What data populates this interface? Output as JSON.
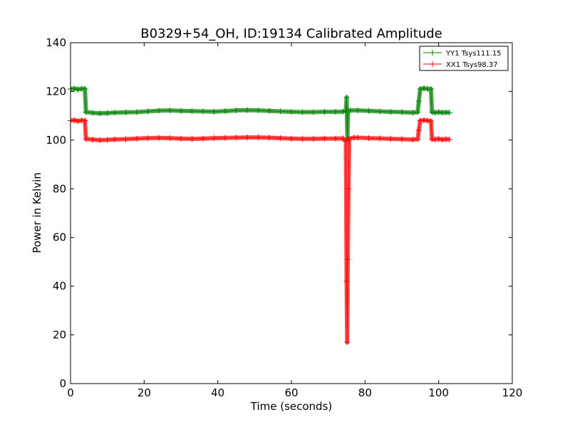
{
  "chart_data": {
    "type": "line",
    "title": "B0329+54_OH, ID:19134 Calibrated Amplitude",
    "xlabel": "Time (seconds)",
    "ylabel": "Power in Kelvin",
    "xlim": [
      0,
      120
    ],
    "ylim": [
      0,
      140
    ],
    "xticks": [
      0,
      20,
      40,
      60,
      80,
      100,
      120
    ],
    "yticks": [
      0,
      20,
      40,
      60,
      80,
      100,
      120,
      140
    ],
    "grid": false,
    "legend_position": "top-right",
    "series": [
      {
        "name": "YY1 Tsys111.15",
        "color": "#008000",
        "marker": "+",
        "points": [
          [
            0,
            121
          ],
          [
            1,
            121.2
          ],
          [
            2,
            120.8
          ],
          [
            3,
            121.1
          ],
          [
            3.9,
            121
          ],
          [
            4.2,
            111.5
          ],
          [
            6,
            111.2
          ],
          [
            8,
            111
          ],
          [
            10,
            111.1
          ],
          [
            12,
            111.3
          ],
          [
            15,
            111.4
          ],
          [
            18,
            111.5
          ],
          [
            21,
            111.8
          ],
          [
            24,
            112.1
          ],
          [
            27,
            112.2
          ],
          [
            30,
            112
          ],
          [
            33,
            111.9
          ],
          [
            36,
            111.8
          ],
          [
            39,
            111.7
          ],
          [
            42,
            111.9
          ],
          [
            45,
            112.2
          ],
          [
            48,
            112.3
          ],
          [
            51,
            112.2
          ],
          [
            54,
            112
          ],
          [
            57,
            111.8
          ],
          [
            60,
            111.6
          ],
          [
            63,
            111.5
          ],
          [
            66,
            111.5
          ],
          [
            69,
            111.6
          ],
          [
            72,
            111.6
          ],
          [
            74,
            111.7
          ],
          [
            74.8,
            112
          ],
          [
            75.0,
            117.5
          ],
          [
            75.2,
            100.5
          ],
          [
            75.4,
            112
          ],
          [
            76,
            112.2
          ],
          [
            78,
            112.2
          ],
          [
            81,
            112
          ],
          [
            84,
            111.8
          ],
          [
            87,
            111.6
          ],
          [
            90,
            111.5
          ],
          [
            93,
            111.3
          ],
          [
            94.3,
            111.5
          ],
          [
            94.6,
            116
          ],
          [
            95,
            121
          ],
          [
            96,
            121.3
          ],
          [
            97,
            121
          ],
          [
            97.9,
            121
          ],
          [
            98.2,
            111.5
          ],
          [
            99,
            111.3
          ],
          [
            100,
            111.5
          ],
          [
            101,
            111.3
          ],
          [
            102,
            111.4
          ],
          [
            103,
            111.3
          ]
        ]
      },
      {
        "name": "XX1 Tsys98.37",
        "color": "#ff0000",
        "marker": "+",
        "points": [
          [
            0,
            108
          ],
          [
            1,
            108.2
          ],
          [
            2,
            107.8
          ],
          [
            3,
            108.1
          ],
          [
            3.9,
            108
          ],
          [
            4.2,
            100.5
          ],
          [
            6,
            100.2
          ],
          [
            8,
            100
          ],
          [
            10,
            100.1
          ],
          [
            12,
            100.3
          ],
          [
            15,
            100.4
          ],
          [
            18,
            100.6
          ],
          [
            21,
            100.8
          ],
          [
            24,
            100.9
          ],
          [
            27,
            100.8
          ],
          [
            30,
            100.6
          ],
          [
            33,
            100.5
          ],
          [
            36,
            100.6
          ],
          [
            39,
            100.8
          ],
          [
            42,
            100.9
          ],
          [
            45,
            101
          ],
          [
            48,
            101.1
          ],
          [
            51,
            101.1
          ],
          [
            54,
            101
          ],
          [
            57,
            100.8
          ],
          [
            60,
            100.6
          ],
          [
            63,
            100.5
          ],
          [
            66,
            100.5
          ],
          [
            69,
            100.6
          ],
          [
            72,
            100.6
          ],
          [
            74,
            100.7
          ],
          [
            74.8,
            99.5
          ],
          [
            75.0,
            42
          ],
          [
            75.15,
            17
          ],
          [
            75.3,
            51
          ],
          [
            75.5,
            80
          ],
          [
            75.7,
            100.6
          ],
          [
            77,
            101
          ],
          [
            78,
            101
          ],
          [
            81,
            100.8
          ],
          [
            84,
            100.7
          ],
          [
            87,
            100.5
          ],
          [
            90,
            100.4
          ],
          [
            93,
            100.2
          ],
          [
            94.3,
            100.4
          ],
          [
            94.6,
            104
          ],
          [
            95,
            108
          ],
          [
            96,
            108.2
          ],
          [
            97,
            108
          ],
          [
            97.9,
            107.8
          ],
          [
            98.2,
            100.4
          ],
          [
            99,
            100.3
          ],
          [
            100,
            100.5
          ],
          [
            101,
            100.2
          ],
          [
            102,
            100.4
          ],
          [
            103,
            100.3
          ]
        ]
      }
    ]
  }
}
